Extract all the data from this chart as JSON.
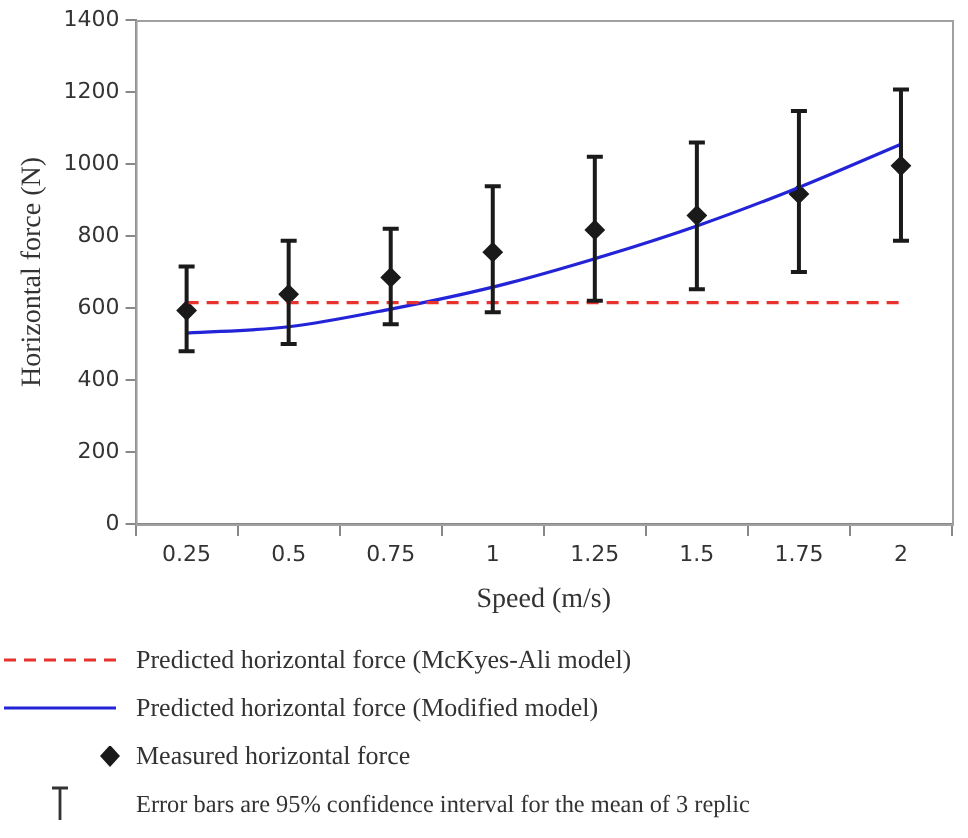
{
  "chart_data": {
    "type": "line",
    "xlabel": "Speed (m/s)",
    "ylabel": "Horizontal force (N)",
    "categories": [
      "0.25",
      "0.5",
      "0.75",
      "1",
      "1.25",
      "1.5",
      "1.75",
      "2"
    ],
    "ylim": [
      0,
      1400
    ],
    "yticks": [
      0,
      200,
      400,
      600,
      800,
      1000,
      1200,
      1400
    ],
    "grid": false,
    "legend": "bottom",
    "series": [
      {
        "name": "Predicted horizontal force (McKyes-Ali model)",
        "color": "#e8322e",
        "line_style": "dashed",
        "marker": "none",
        "values": [
          615,
          615,
          615,
          615,
          615,
          615,
          615,
          615
        ]
      },
      {
        "name": "Predicted horizontal force (Modified model)",
        "color": "#2323d8",
        "line_style": "solid",
        "marker": "none",
        "values": [
          530,
          548,
          597,
          658,
          737,
          828,
          935,
          1055
        ]
      },
      {
        "name": "Measured horizontal force",
        "type": "scatter",
        "color": "#1a1a1a",
        "marker": "diamond",
        "values": [
          593,
          638,
          685,
          755,
          817,
          857,
          917,
          995
        ],
        "errors": [
          [
            480,
            715
          ],
          [
            500,
            787
          ],
          [
            555,
            820
          ],
          [
            588,
            938
          ],
          [
            620,
            1020
          ],
          [
            652,
            1060
          ],
          [
            700,
            1147
          ],
          [
            787,
            1207
          ]
        ]
      }
    ],
    "annotations": [
      "Error bars are 95% confidence interval for the mean of 3 replic"
    ]
  }
}
